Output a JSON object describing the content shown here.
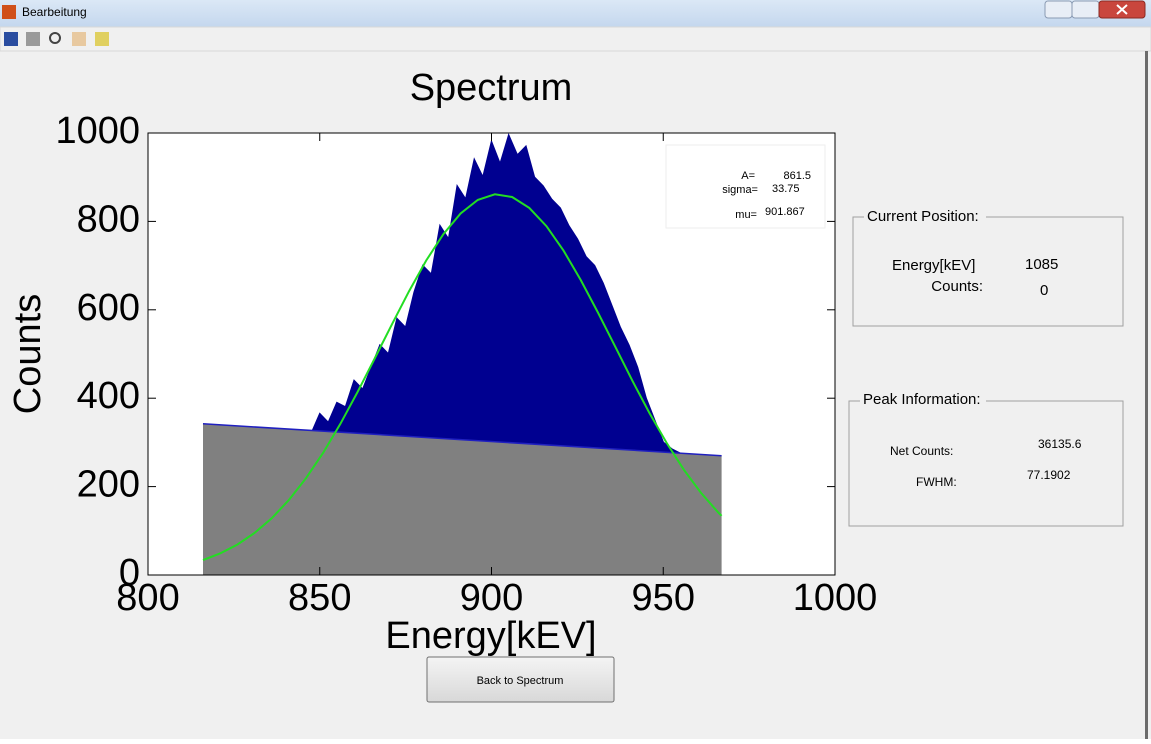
{
  "window": {
    "title": "Bearbeitung"
  },
  "chart_data": {
    "type": "area",
    "title": "Spectrum",
    "x_label": "Energy[kEV]",
    "y_label": "Counts",
    "xlim": [
      800,
      1000
    ],
    "xticks": [
      800,
      850,
      900,
      950,
      1000
    ],
    "ylim": [
      0,
      1000
    ],
    "yticks": [
      0,
      200,
      400,
      600,
      800,
      1000
    ],
    "series": [
      {
        "style": "area",
        "color": "#000090",
        "edge": "#000090",
        "x": [
          847.5,
          850,
          852.5,
          855,
          857.5,
          860,
          862.5,
          865,
          867.5,
          870,
          872.5,
          875,
          877.5,
          880,
          882.5,
          885,
          887.5,
          890,
          892.5,
          895,
          897.5,
          900,
          902.5,
          905,
          907.5,
          910,
          912.5,
          915,
          917.5,
          920,
          922.5,
          925,
          927.5,
          930,
          932.5,
          935,
          937.5,
          940,
          942.5,
          945,
          947.5,
          950,
          952.5,
          955,
          957.5
        ],
        "values": [
          320,
          365,
          345,
          390,
          380,
          440,
          420,
          470,
          520,
          500,
          580,
          560,
          640,
          700,
          680,
          790,
          760,
          880,
          850,
          940,
          900,
          980,
          930,
          995,
          950,
          970,
          900,
          880,
          850,
          830,
          790,
          760,
          720,
          700,
          660,
          610,
          560,
          520,
          470,
          400,
          350,
          300,
          285,
          275,
          270
        ]
      },
      {
        "style": "area",
        "color": "#808080",
        "edge": "#2020c0",
        "x": [
          816,
          967
        ],
        "values": [
          342,
          270
        ]
      },
      {
        "style": "line",
        "color": "#22dd22",
        "x": [
          816,
          821,
          826,
          831,
          836,
          841,
          846,
          851,
          856,
          861,
          866,
          871,
          876,
          881,
          886,
          891,
          896,
          901,
          906,
          911,
          916,
          921,
          926,
          931,
          936,
          941,
          946,
          951,
          956,
          961,
          966,
          967
        ],
        "values": [
          33.8,
          48.8,
          68.8,
          95.0,
          128.3,
          169.5,
          218.9,
          276.6,
          342.1,
          413.9,
          489.8,
          567.0,
          642.3,
          711.6,
          771.3,
          817.9,
          848.6,
          861.2,
          855.1,
          830.6,
          789.2,
          733.6,
          667.1,
          593.6,
          516.7,
          439.9,
          366.4,
          298.6,
          238.0,
          185.7,
          141.6,
          134
        ]
      }
    ]
  },
  "fit_box": {
    "rows": [
      {
        "label": "A=",
        "value": 861.5
      },
      {
        "label": "sigma=",
        "value": 33.75
      },
      {
        "label": "mu=",
        "value": 901.867
      }
    ]
  },
  "current_position": {
    "title": "Current Position:",
    "energy_label": "Energy[kEV]",
    "energy": 1085,
    "counts_label": "Counts:",
    "counts": 0
  },
  "peak_information": {
    "title": "Peak Information:",
    "net_counts_label": "Net Counts:",
    "net_counts": 36135.6,
    "fwhm_label": "FWHM:",
    "fwhm": 77.1902
  },
  "button": "Back to Spectrum"
}
